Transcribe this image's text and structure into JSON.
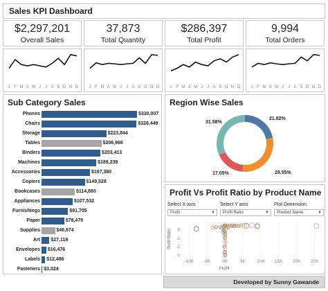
{
  "header": {
    "title": "Sales KPI Dashboard"
  },
  "kpis": [
    {
      "value": "$2,297,201",
      "label": "Overall Sales"
    },
    {
      "value": "37,873",
      "label": "Total Quantity"
    },
    {
      "value": "$286,397",
      "label": "Total Profit"
    },
    {
      "value": "9,994",
      "label": "Total Orders"
    }
  ],
  "sparkline_months": [
    "J",
    "F",
    "M",
    "A",
    "M",
    "J",
    "J",
    "A",
    "S",
    "O",
    "N",
    "D"
  ],
  "sparklines": [
    [
      0.4,
      0.75,
      0.55,
      0.5,
      0.55,
      0.5,
      0.45,
      0.6,
      0.8,
      0.55,
      0.95,
      0.9
    ],
    [
      0.4,
      0.62,
      0.55,
      0.6,
      0.58,
      0.55,
      0.58,
      0.6,
      0.82,
      0.6,
      0.95,
      0.92
    ],
    [
      0.3,
      0.4,
      0.55,
      0.45,
      0.65,
      0.55,
      0.5,
      0.7,
      0.78,
      0.65,
      0.85,
      0.95
    ],
    [
      0.45,
      0.6,
      0.55,
      0.62,
      0.58,
      0.55,
      0.58,
      0.6,
      0.85,
      0.7,
      0.95,
      0.92
    ]
  ],
  "subcategory": {
    "title": "Sub Category Sales",
    "chart_data": {
      "type": "bar",
      "orientation": "horizontal",
      "categories": [
        "Phones",
        "Chairs",
        "Storage",
        "Tables",
        "Binders",
        "Machines",
        "Accessories",
        "Copiers",
        "Bookcases",
        "Appliances",
        "Furnishings",
        "Paper",
        "Supplies",
        "Art",
        "Envelopes",
        "Labels",
        "Fasteners"
      ],
      "values": [
        330007,
        328449,
        223844,
        206966,
        203413,
        189239,
        167380,
        149528,
        114880,
        107532,
        91705,
        78479,
        46674,
        27119,
        16476,
        12486,
        3024
      ],
      "value_labels": [
        "$330,007",
        "$328,449",
        "$223,844",
        "$206,966",
        "$203,413",
        "$189,239",
        "$167,380",
        "$149,528",
        "$114,880",
        "$107,532",
        "$91,705",
        "$78,479",
        "$46,674",
        "$27,119",
        "$16,476",
        "$12,486",
        "$3,024"
      ],
      "highlighted": [
        false,
        false,
        false,
        true,
        false,
        false,
        false,
        false,
        true,
        false,
        false,
        false,
        true,
        false,
        false,
        false,
        false
      ],
      "colors": {
        "normal": "#2e5d8e",
        "highlight": "#a6a6a6"
      }
    }
  },
  "region": {
    "title": "Region Wise Sales",
    "chart_data": {
      "type": "pie",
      "donut": true,
      "values": [
        21.82,
        29.55,
        17.05,
        31.58
      ],
      "labels": [
        "21.82%",
        "29.55%",
        "17.05%",
        "31.58%"
      ],
      "colors": [
        "#4e79a7",
        "#f28e2b",
        "#e15759",
        "#76b7b2"
      ]
    }
  },
  "profit": {
    "title": "Profit Vs Profit Ratio by Product Name",
    "controls": [
      {
        "label": "Select X axis",
        "value": "Profit"
      },
      {
        "label": "Select Y axis",
        "value": "Profit Ratio"
      },
      {
        "label": "Plot Dimension",
        "value": "Product Name"
      }
    ],
    "chart_data": {
      "type": "scatter",
      "xlabel": "Profit",
      "ylabel": "Profit Ratio",
      "xlim": [
        -12000,
        27000
      ],
      "ylim": [
        -3.2,
        1.0
      ],
      "x_ticks": [
        "-10K",
        "-5K",
        "0K",
        "5K",
        "10K",
        "15K",
        "20K",
        "25K"
      ],
      "x_tick_values": [
        -10000,
        -5000,
        0,
        5000,
        10000,
        15000,
        20000,
        25000
      ],
      "y_ticks": [
        "0",
        "-1",
        "-2",
        "-3"
      ],
      "y_tick_values": [
        0,
        -1,
        -2,
        -3
      ],
      "points": [
        [
          -8000,
          0.1
        ],
        [
          -3500,
          0.25
        ],
        [
          -2500,
          0.3
        ],
        [
          -1500,
          0.35
        ],
        [
          -1000,
          0.2
        ],
        [
          -700,
          0.4
        ],
        [
          -500,
          0.3
        ],
        [
          -300,
          0.15
        ],
        [
          -200,
          0.45
        ],
        [
          0,
          0.3
        ],
        [
          100,
          0.5
        ],
        [
          300,
          0.4
        ],
        [
          500,
          0.35
        ],
        [
          700,
          0.45
        ],
        [
          900,
          0.3
        ],
        [
          1100,
          0.5
        ],
        [
          1400,
          0.45
        ],
        [
          1700,
          0.35
        ],
        [
          2000,
          0.5
        ],
        [
          2300,
          0.45
        ],
        [
          2600,
          0.4
        ],
        [
          3000,
          0.5
        ],
        [
          3400,
          0.45
        ],
        [
          3800,
          0.4
        ],
        [
          4500,
          0.5
        ],
        [
          5200,
          0.45
        ],
        [
          6000,
          0.45
        ],
        [
          7500,
          0.5
        ],
        [
          9000,
          0.4
        ],
        [
          25500,
          0.4
        ],
        [
          -100,
          -0.2
        ],
        [
          0,
          -0.4
        ],
        [
          100,
          -0.6
        ],
        [
          -200,
          -0.8
        ],
        [
          50,
          -1.0
        ],
        [
          -50,
          -1.2
        ],
        [
          150,
          -1.5
        ],
        [
          0,
          -1.8
        ],
        [
          -100,
          -2.0
        ],
        [
          100,
          -2.3
        ],
        [
          0,
          -2.6
        ],
        [
          -50,
          -2.8
        ],
        [
          50,
          -3.0
        ],
        [
          200,
          0.0
        ],
        [
          -300,
          -0.1
        ],
        [
          400,
          0.1
        ],
        [
          -600,
          -0.3
        ],
        [
          800,
          0.2
        ]
      ],
      "colors": [
        "#4e79a7",
        "#f28e2b",
        "#e15759",
        "#76b7b2",
        "#59a14f",
        "#edc948",
        "#b07aa1",
        "#ff9da7",
        "#9c755f",
        "#bab0ac"
      ]
    }
  },
  "footer": {
    "credit": "Developed by Sunny Gawande"
  }
}
